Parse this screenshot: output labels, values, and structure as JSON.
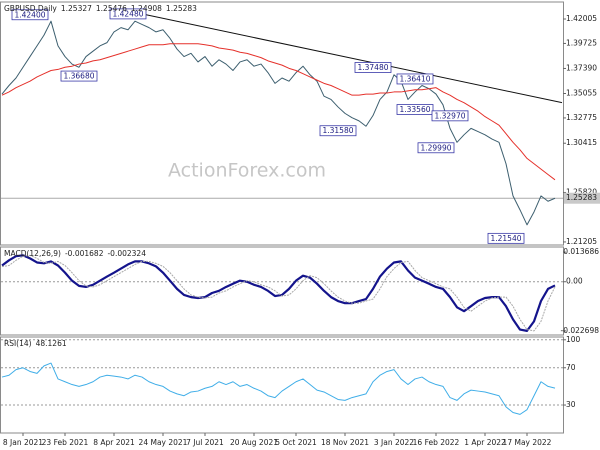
{
  "chart_data": [
    {
      "type": "line",
      "title": "GBPUSD,Daily",
      "ohlc": [
        1.25327,
        1.25476,
        1.24908,
        1.25283
      ],
      "watermark": "ActionForex.com",
      "ylim": [
        1.2092,
        1.4359
      ],
      "yticks": [
        1.42005,
        1.39725,
        {
          "value": 1.3739,
          "label": "1.37390"
        },
        1.35055,
        1.32775,
        1.30415,
        {
          "value": 1.2582,
          "label": "1.25820"
        },
        1.21205
      ],
      "series": [
        {
          "color": "#3d5f6f",
          "values": [
            1.35,
            1.358,
            1.365,
            1.375,
            1.385,
            1.395,
            1.405,
            1.418,
            1.395,
            1.385,
            1.378,
            1.375,
            1.385,
            1.39,
            1.395,
            1.398,
            1.408,
            1.412,
            1.41,
            1.418,
            1.415,
            1.412,
            1.408,
            1.41,
            1.402,
            1.392,
            1.385,
            1.388,
            1.38,
            1.385,
            1.376,
            1.382,
            1.378,
            1.372,
            1.38,
            1.382,
            1.376,
            1.378,
            1.37,
            1.36,
            1.365,
            1.362,
            1.37,
            1.376,
            1.368,
            1.362,
            1.348,
            1.345,
            1.338,
            1.332,
            1.328,
            1.325,
            1.32,
            1.33,
            1.345,
            1.352,
            1.368,
            1.362,
            1.345,
            1.352,
            1.358,
            1.355,
            1.35,
            1.34,
            1.318,
            1.305,
            1.312,
            1.318,
            1.315,
            1.312,
            1.308,
            1.305,
            1.285,
            1.255,
            1.242,
            1.228,
            1.24,
            1.255,
            1.25,
            1.2528
          ]
        },
        {
          "color": "#e5312b",
          "values": [
            1.349,
            1.352,
            1.356,
            1.359,
            1.362,
            1.366,
            1.369,
            1.372,
            1.373,
            1.375,
            1.376,
            1.378,
            1.379,
            1.381,
            1.382,
            1.384,
            1.386,
            1.388,
            1.39,
            1.392,
            1.394,
            1.396,
            1.396,
            1.396,
            1.397,
            1.397,
            1.397,
            1.397,
            1.397,
            1.396,
            1.395,
            1.393,
            1.392,
            1.391,
            1.389,
            1.388,
            1.386,
            1.384,
            1.381,
            1.379,
            1.377,
            1.374,
            1.372,
            1.369,
            1.366,
            1.363,
            1.36,
            1.358,
            1.355,
            1.352,
            1.349,
            1.349,
            1.35,
            1.35,
            1.351,
            1.351,
            1.352,
            1.352,
            1.353,
            1.354,
            1.354,
            1.355,
            1.356,
            1.352,
            1.349,
            1.345,
            1.342,
            1.338,
            1.334,
            1.329,
            1.325,
            1.321,
            1.313,
            1.305,
            1.298,
            1.29,
            1.285,
            1.28,
            1.275,
            1.27
          ]
        }
      ],
      "trendline": {
        "start_index": 20,
        "start_value": 1.4248,
        "end_index": 80,
        "end_value": 1.342,
        "color": "#111111"
      },
      "annotations": [
        {
          "value": 1.424,
          "label": "1.42400",
          "index": 4
        },
        {
          "value": 1.4248,
          "label": "1.42480",
          "index": 18
        },
        {
          "value": 1.3668,
          "label": "1.36680",
          "index": 11
        },
        {
          "value": 1.3158,
          "label": "1.31580",
          "index": 48
        },
        {
          "value": 1.3748,
          "label": "1.37480",
          "index": 53
        },
        {
          "value": 1.3641,
          "label": "1.36410",
          "index": 59
        },
        {
          "value": 1.3356,
          "label": "1.33560",
          "index": 59
        },
        {
          "value": 1.3297,
          "label": "1.32970",
          "index": 64
        },
        {
          "value": 1.2999,
          "label": "1.29990",
          "index": 62
        },
        {
          "value": 1.2154,
          "label": "1.21540",
          "index": 72
        }
      ]
    },
    {
      "type": "line",
      "title": "MACD(12,26,9)",
      "printed_values": [
        -0.001682,
        -0.002324
      ],
      "ylim": [
        -0.0246,
        0.01605
      ],
      "yticks": [
        0.013686,
        {
          "value": 0,
          "label": "0.00"
        },
        -0.022698
      ],
      "zero_line": true,
      "series": [
        {
          "color": "#14148c",
          "values": [
            0.0075,
            0.0099,
            0.0118,
            0.0122,
            0.0108,
            0.0089,
            0.0085,
            0.0094,
            0.0075,
            0.0042,
            0.0005,
            -0.0019,
            -0.0024,
            -0.0014,
            0.0005,
            0.0024,
            0.0042,
            0.0061,
            0.008,
            0.0094,
            0.0094,
            0.0085,
            0.0071,
            0.0042,
            0.0005,
            -0.0033,
            -0.0061,
            -0.0071,
            -0.0075,
            -0.0071,
            -0.0052,
            -0.0042,
            -0.0024,
            -0.0009,
            0.0005,
            0.0,
            -0.0014,
            -0.0024,
            -0.0042,
            -0.0066,
            -0.0061,
            -0.0033,
            0.0005,
            0.0028,
            0.0019,
            -0.0009,
            -0.0042,
            -0.0071,
            -0.0089,
            -0.0099,
            -0.0099,
            -0.0089,
            -0.008,
            -0.0033,
            0.0024,
            0.0061,
            0.0089,
            0.0094,
            0.0052,
            0.0019,
            0.0005,
            -0.0009,
            -0.0024,
            -0.0033,
            -0.0071,
            -0.0118,
            -0.0136,
            -0.0113,
            -0.0089,
            -0.0075,
            -0.0071,
            -0.0071,
            -0.0113,
            -0.0174,
            -0.0221,
            -0.0227,
            -0.0183,
            -0.0089,
            -0.0033,
            -0.0017
          ]
        },
        {
          "color": "#a8a8a8",
          "values": [
            0.007,
            0.0075,
            0.0099,
            0.0118,
            0.0122,
            0.0108,
            0.0089,
            0.0085,
            0.0094,
            0.0075,
            0.0042,
            0.0005,
            -0.0019,
            -0.0024,
            -0.0014,
            0.0005,
            0.0024,
            0.0042,
            0.0061,
            0.008,
            0.0094,
            0.0094,
            0.0085,
            0.0071,
            0.0042,
            0.0005,
            -0.0033,
            -0.0061,
            -0.0071,
            -0.0075,
            -0.0071,
            -0.0052,
            -0.0042,
            -0.0024,
            -0.0009,
            0.0005,
            0.0,
            -0.0014,
            -0.0024,
            -0.0042,
            -0.0066,
            -0.0061,
            -0.0033,
            0.0005,
            0.0028,
            0.0019,
            -0.0009,
            -0.0042,
            -0.0071,
            -0.0089,
            -0.0099,
            -0.0099,
            -0.0089,
            -0.008,
            -0.0033,
            0.0024,
            0.0061,
            0.0089,
            0.0094,
            0.0052,
            0.0019,
            0.0005,
            -0.0009,
            -0.0024,
            -0.0033,
            -0.0071,
            -0.0118,
            -0.0136,
            -0.0113,
            -0.0089,
            -0.0075,
            -0.0071,
            -0.0071,
            -0.0113,
            -0.0174,
            -0.0221,
            -0.0227,
            -0.0183,
            -0.0089,
            -0.0023
          ]
        }
      ]
    },
    {
      "type": "line",
      "title": "RSI(14)",
      "printed_values": [
        48.1261
      ],
      "ylim": [
        0,
        103
      ],
      "yticks": [
        100,
        70,
        30
      ],
      "grid": true,
      "categories": [
        null,
        null,
        null,
        "8 Jan 2021",
        null,
        null,
        null,
        null,
        null,
        "23 Feb 2021",
        null,
        null,
        null,
        null,
        null,
        null,
        "8 Apr 2021",
        null,
        null,
        null,
        null,
        null,
        null,
        "24 May 2021",
        null,
        null,
        null,
        null,
        null,
        "7 Jul 2021",
        null,
        null,
        null,
        null,
        null,
        null,
        "20 Aug 2021",
        null,
        null,
        null,
        null,
        null,
        "5 Oct 2021",
        null,
        null,
        null,
        null,
        null,
        null,
        "18 Nov 2021",
        null,
        null,
        null,
        null,
        null,
        null,
        "3 Jan 2022",
        null,
        null,
        null,
        null,
        null,
        "16 Feb 2022",
        null,
        null,
        null,
        null,
        null,
        null,
        "1 Apr 2022",
        null,
        null,
        null,
        null,
        null,
        "17 May 2022",
        null,
        null,
        null,
        null
      ],
      "series": [
        {
          "color": "#40aee8",
          "values": [
            60,
            62,
            68,
            70,
            66,
            64,
            72,
            75,
            58,
            55,
            52,
            50,
            52,
            55,
            60,
            62,
            61,
            60,
            58,
            62,
            60,
            55,
            52,
            50,
            45,
            42,
            40,
            44,
            45,
            48,
            50,
            55,
            52,
            55,
            50,
            52,
            48,
            45,
            40,
            38,
            45,
            50,
            55,
            58,
            52,
            46,
            44,
            40,
            36,
            35,
            38,
            40,
            42,
            55,
            62,
            66,
            68,
            58,
            52,
            58,
            60,
            55,
            52,
            50,
            38,
            35,
            42,
            46,
            45,
            44,
            42,
            40,
            28,
            22,
            20,
            25,
            40,
            55,
            50,
            48.1261
          ]
        }
      ]
    }
  ]
}
